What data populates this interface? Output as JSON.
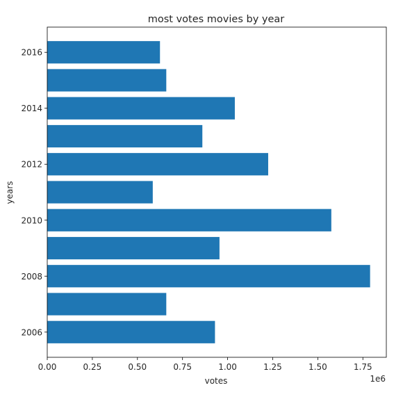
{
  "chart_data": {
    "type": "bar",
    "orientation": "horizontal",
    "title": "most votes movies by year",
    "xlabel": "votes",
    "ylabel": "years",
    "x_offset_label": "1e6",
    "xlim": [
      0,
      1.88
    ],
    "ylim": [
      2005.1,
      2016.9
    ],
    "x_ticks": [
      {
        "value": 0,
        "label": "0.00"
      },
      {
        "value": 0.25,
        "label": "0.25"
      },
      {
        "value": 0.5,
        "label": "0.50"
      },
      {
        "value": 0.75,
        "label": "0.75"
      },
      {
        "value": 1.0,
        "label": "1.00"
      },
      {
        "value": 1.25,
        "label": "1.25"
      },
      {
        "value": 1.5,
        "label": "1.50"
      },
      {
        "value": 1.75,
        "label": "1.75"
      }
    ],
    "y_ticks": [
      {
        "value": 2006,
        "label": "2006"
      },
      {
        "value": 2008,
        "label": "2008"
      },
      {
        "value": 2010,
        "label": "2010"
      },
      {
        "value": 2012,
        "label": "2012"
      },
      {
        "value": 2014,
        "label": "2014"
      },
      {
        "value": 2016,
        "label": "2016"
      }
    ],
    "bar_height": 0.8,
    "bars": [
      {
        "year": 2006,
        "value": 0.93
      },
      {
        "year": 2007,
        "value": 0.66
      },
      {
        "year": 2008,
        "value": 1.79
      },
      {
        "year": 2009,
        "value": 0.955
      },
      {
        "year": 2010,
        "value": 1.575
      },
      {
        "year": 2011,
        "value": 0.585
      },
      {
        "year": 2012,
        "value": 1.225
      },
      {
        "year": 2013,
        "value": 0.86
      },
      {
        "year": 2014,
        "value": 1.04
      },
      {
        "year": 2015,
        "value": 0.66
      },
      {
        "year": 2016,
        "value": 0.625
      }
    ],
    "bar_color": "#1f77b4",
    "grid": false
  }
}
